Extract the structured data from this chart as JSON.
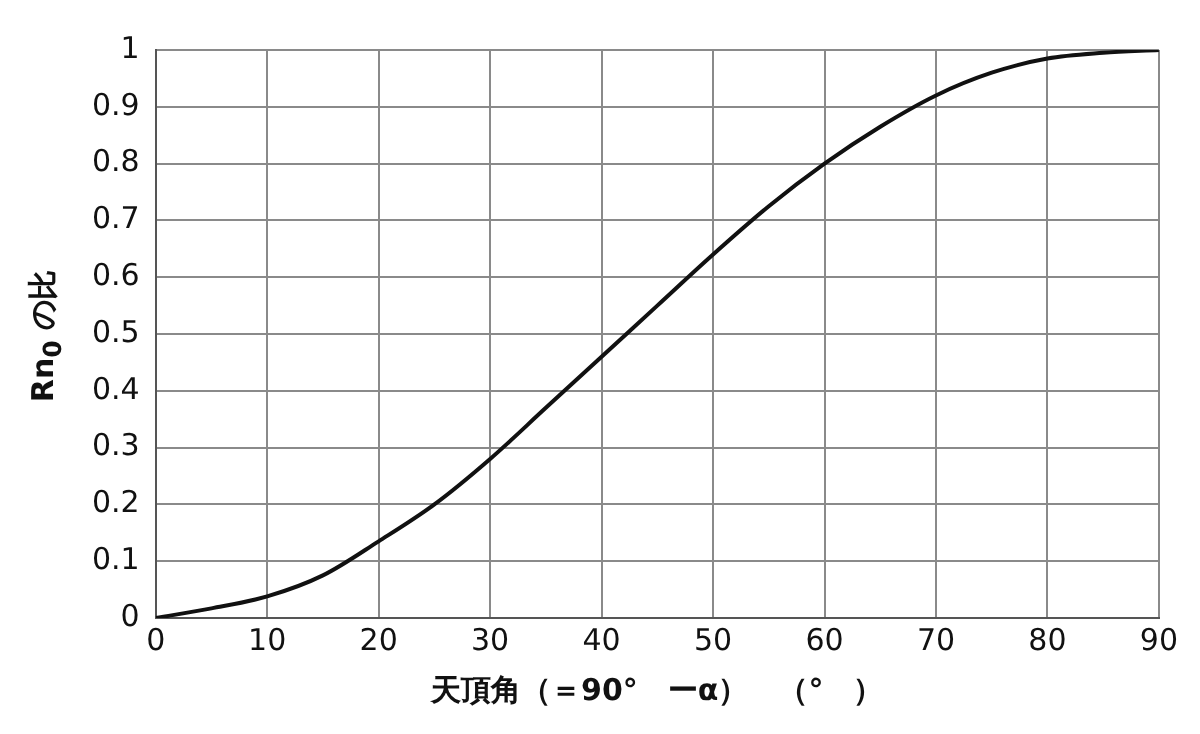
{
  "chart_data": {
    "type": "line",
    "xlabel": "天頂角（＝90°　ーα）　（°　）",
    "ylabel": "Rn$_{0}$ の比",
    "x": [
      0,
      5,
      10,
      15,
      20,
      25,
      30,
      35,
      40,
      45,
      50,
      55,
      60,
      65,
      70,
      75,
      80,
      85,
      90
    ],
    "series": [
      {
        "color": "#111111",
        "values": [
          0,
          0.017,
          0.038,
          0.075,
          0.135,
          0.2,
          0.28,
          0.37,
          0.46,
          0.55,
          0.64,
          0.725,
          0.8,
          0.865,
          0.92,
          0.96,
          0.985,
          0.995,
          1
        ]
      }
    ],
    "xlim": [
      0,
      90
    ],
    "xticks": [
      0,
      10,
      20,
      30,
      40,
      50,
      60,
      70,
      80,
      90
    ],
    "ylim": [
      0,
      1
    ],
    "yticks": [
      0,
      0.1,
      0.2,
      0.3,
      0.4,
      0.5,
      0.6,
      0.7,
      0.8,
      0.9,
      1
    ],
    "grid": true,
    "legend": false,
    "marker": "none",
    "line_style": "solid"
  }
}
